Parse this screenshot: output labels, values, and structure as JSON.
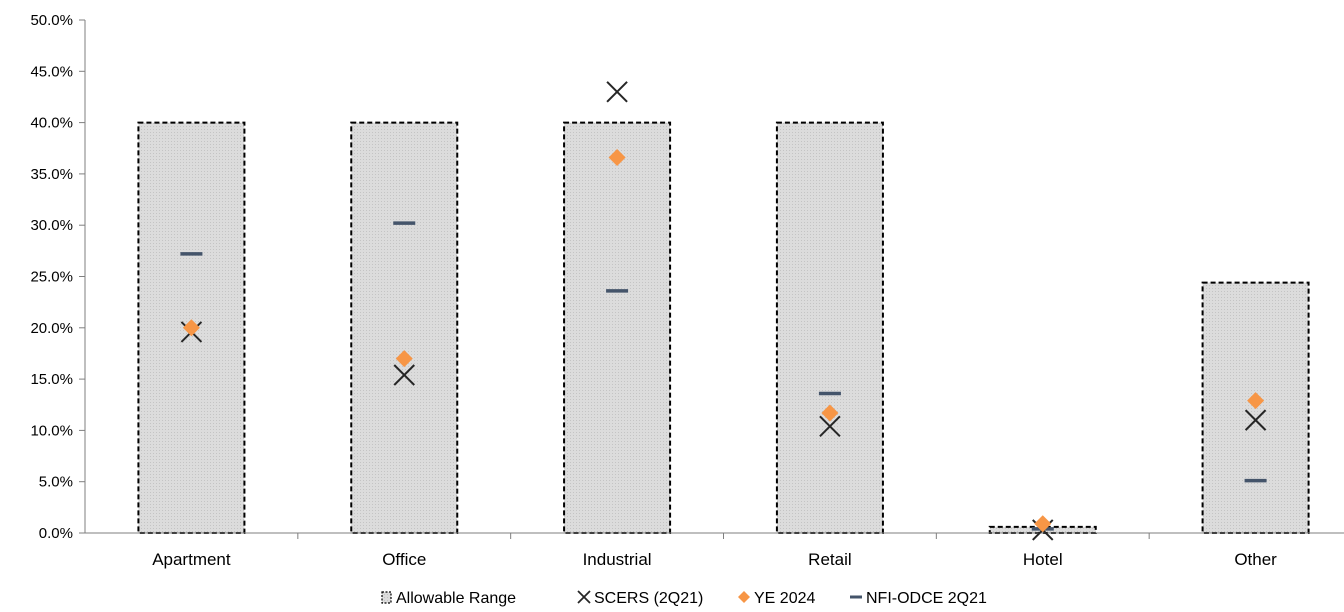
{
  "chart_data": {
    "type": "bar",
    "title": "",
    "xlabel": "",
    "ylabel": "",
    "ylim": [
      0,
      50
    ],
    "y_ticks": [
      0,
      5,
      10,
      15,
      20,
      25,
      30,
      35,
      40,
      45,
      50
    ],
    "y_tick_labels": [
      "0.0%",
      "5.0%",
      "10.0%",
      "15.0%",
      "20.0%",
      "25.0%",
      "30.0%",
      "35.0%",
      "40.0%",
      "45.0%",
      "50.0%"
    ],
    "grid": false,
    "legend_position": "bottom",
    "categories": [
      "Apartment",
      "Office",
      "Industrial",
      "Retail",
      "Hotel",
      "Other"
    ],
    "series": [
      {
        "name": "Allowable Range",
        "kind": "range",
        "values": [
          40,
          40,
          40,
          40,
          0.6,
          24.4
        ],
        "color": "#d9d9d9"
      },
      {
        "name": "SCERS (2Q21)",
        "kind": "x-marker",
        "values": [
          19.6,
          15.4,
          43.0,
          10.4,
          0.3,
          11.0
        ],
        "color": "#262626"
      },
      {
        "name": "YE 2024",
        "kind": "diamond-marker",
        "values": [
          20.0,
          17.0,
          36.6,
          11.7,
          0.9,
          12.9
        ],
        "color": "#f79646"
      },
      {
        "name": "NFI-ODCE 2Q21",
        "kind": "dash-marker",
        "values": [
          27.2,
          30.2,
          23.6,
          13.6,
          0.4,
          5.1
        ],
        "color": "#44546a"
      }
    ]
  }
}
